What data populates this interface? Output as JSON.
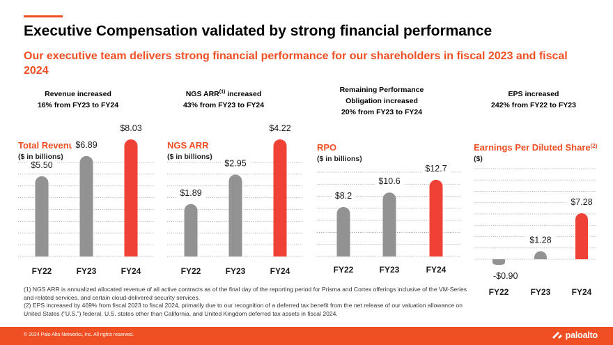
{
  "header": {
    "title": "Executive Compensation validated by strong financial performance",
    "subtitle": "Our executive team delivers strong financial performance for our shareholders in fiscal 2023 and fiscal 2024"
  },
  "stats": [
    {
      "line1": "Revenue increased",
      "line2": "16% from FY23 to FY24"
    },
    {
      "line1_pre": "NGS ARR",
      "line1_sup": "(1)",
      "line1_post": " increased",
      "line2": "43% from FY23 to FY24"
    },
    {
      "line1": "Remaining Performance",
      "line2": "Obligation increased",
      "line3": "20% from FY23 to FY24"
    },
    {
      "line1": "EPS increased",
      "line2": "242% from FY22 to FY23"
    }
  ],
  "colors": {
    "accent": "#f04e23",
    "grey_bar": "#929292",
    "red_bar": "#ef4136",
    "chart_title": "#f04e23"
  },
  "chart_data": [
    {
      "type": "bar",
      "title": "Total Revenue",
      "ylabel": "($ in billions)",
      "categories": [
        "FY22",
        "FY23",
        "FY24"
      ],
      "values": [
        5.5,
        6.89,
        8.03
      ],
      "value_labels": [
        "$5.50",
        "$6.89",
        "$8.03"
      ],
      "ylim": [
        0,
        9.2
      ],
      "grid": true
    },
    {
      "type": "bar",
      "title": "NGS ARR",
      "ylabel": "($ in billions)",
      "categories": [
        "FY22",
        "FY23",
        "FY24"
      ],
      "values": [
        1.89,
        2.95,
        4.22
      ],
      "value_labels": [
        "$1.89",
        "$2.95",
        "$4.22"
      ],
      "ylim": [
        0,
        9.2
      ],
      "grid": true
    },
    {
      "type": "bar",
      "title": "RPO",
      "ylabel": "($ in billions)",
      "categories": [
        "FY22",
        "FY23",
        "FY24"
      ],
      "values": [
        8.2,
        10.6,
        12.7
      ],
      "value_labels": [
        "$8.2",
        "$10.6",
        "$12.7"
      ],
      "ylim": [
        0,
        14
      ],
      "grid": true
    },
    {
      "type": "bar",
      "title": "Earnings Per Diluted Share",
      "title_sup": "(2)",
      "ylabel": "($)",
      "categories": [
        "FY22",
        "FY23",
        "FY24"
      ],
      "values": [
        -0.9,
        1.28,
        7.28
      ],
      "value_labels": [
        "-$0.90",
        "$1.28",
        "$7.28"
      ],
      "ylim": [
        -1,
        13
      ],
      "grid": true
    }
  ],
  "footnotes": {
    "note1": "(1) NGS ARR is annualized allocated revenue of all active contracts as of the final day of the reporting period for Prisma and Cortex offerings inclusive of the VM-Series and related services, and certain cloud-delivered security services.",
    "note2": "(2) EPS increased by 469% from fiscal 2023 to fiscal 2024, primarily due to our recognition of a deferred tax benefit from the net release of our valuation allowance on United States (\"U.S.\") federal, U.S. states other than California, and United Kingdom deferred tax assets in fiscal 2024."
  },
  "footer": {
    "copyright": "© 2024 Palo Alto Networks, Inc. All rights reserved.",
    "logo_text": "paloalto",
    "logo_icon": "paloalto-logo-icon"
  }
}
